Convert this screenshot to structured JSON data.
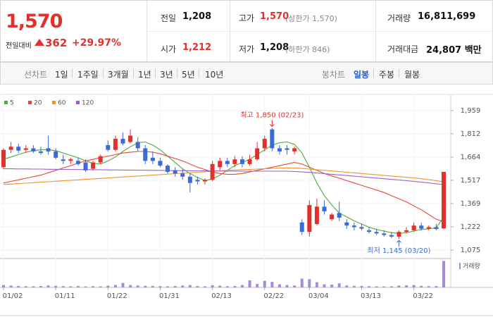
{
  "quote": {
    "price": "1,570",
    "change_label": "전일대비",
    "change": "362",
    "change_pct": "+29.97%",
    "rows": [
      [
        {
          "label": "전일",
          "value": "1,208"
        },
        {
          "label": "고가",
          "value": "1,570",
          "note": "(상한가 1,570)"
        },
        {
          "label": "거래량",
          "value": "16,811,699"
        }
      ],
      [
        {
          "label": "시가",
          "value": "1,212"
        },
        {
          "label": "저가",
          "value": "1,208",
          "note": "(하한가 846)"
        },
        {
          "label": "거래대금",
          "value": "24,807 백만"
        }
      ]
    ]
  },
  "tabs": {
    "line_title": "선차트",
    "line_periods": [
      "1일",
      "1주일",
      "3개월",
      "1년",
      "3년",
      "5년",
      "10년"
    ],
    "candle_title": "봉차트",
    "candle_periods": [
      "일봉",
      "주봉",
      "월봉"
    ],
    "active_candle_period": 0
  },
  "chart_data": {
    "type": "candlestick",
    "categories": [
      "01/02",
      null,
      null,
      null,
      null,
      null,
      null,
      "01/11",
      null,
      null,
      null,
      null,
      null,
      null,
      "01/22",
      null,
      null,
      null,
      null,
      null,
      null,
      "01/31",
      null,
      null,
      null,
      null,
      null,
      null,
      "02/13",
      null,
      null,
      null,
      null,
      null,
      null,
      "02/22",
      null,
      null,
      null,
      null,
      null,
      "03/04",
      null,
      null,
      null,
      null,
      null,
      null,
      "03/13",
      null,
      null,
      null,
      null,
      null,
      null,
      "03/22",
      null,
      null,
      null,
      null
    ],
    "open": [
      1600,
      1710,
      1730,
      1710,
      1720,
      1700,
      1720,
      1700,
      1650,
      1640,
      1640,
      1630,
      1590,
      1630,
      1740,
      1710,
      1780,
      1760,
      1760,
      1720,
      1660,
      1640,
      1610,
      1580,
      1560,
      1540,
      1520,
      1510,
      1520,
      1600,
      1640,
      1620,
      1650,
      1620,
      1650,
      1720,
      1840,
      1720,
      1720,
      1700,
      1250,
      1190,
      1240,
      1350,
      1270,
      1310,
      1250,
      1230,
      1220,
      1200,
      1190,
      1180,
      1170,
      1160,
      1190,
      1200,
      1230,
      1210,
      1220,
      1212
    ],
    "high": [
      1720,
      1760,
      1750,
      1740,
      1740,
      1730,
      1800,
      1720,
      1680,
      1660,
      1660,
      1650,
      1640,
      1680,
      1770,
      1800,
      1820,
      1840,
      1790,
      1740,
      1700,
      1660,
      1620,
      1600,
      1590,
      1560,
      1540,
      1530,
      1640,
      1660,
      1660,
      1670,
      1670,
      1680,
      1760,
      1800,
      1850,
      1740,
      1740,
      1730,
      1270,
      1390,
      1400,
      1390,
      1310,
      1380,
      1270,
      1250,
      1240,
      1220,
      1210,
      1200,
      1190,
      1200,
      1220,
      1250,
      1250,
      1230,
      1240,
      1570
    ],
    "low": [
      1590,
      1690,
      1690,
      1690,
      1690,
      1680,
      1680,
      1650,
      1620,
      1620,
      1610,
      1570,
      1580,
      1620,
      1700,
      1700,
      1740,
      1750,
      1700,
      1620,
      1620,
      1600,
      1560,
      1540,
      1520,
      1440,
      1490,
      1490,
      1510,
      1580,
      1600,
      1600,
      1600,
      1610,
      1640,
      1700,
      1700,
      1680,
      1680,
      1680,
      1170,
      1160,
      1230,
      1300,
      1260,
      1260,
      1210,
      1200,
      1200,
      1180,
      1170,
      1160,
      1150,
      1145,
      1180,
      1190,
      1200,
      1200,
      1200,
      1208
    ],
    "close": [
      1710,
      1730,
      1705,
      1720,
      1700,
      1690,
      1700,
      1660,
      1640,
      1650,
      1620,
      1580,
      1630,
      1670,
      1710,
      1780,
      1750,
      1800,
      1720,
      1640,
      1640,
      1610,
      1570,
      1560,
      1540,
      1500,
      1510,
      1520,
      1620,
      1640,
      1620,
      1650,
      1620,
      1650,
      1720,
      1780,
      1720,
      1700,
      1710,
      1720,
      1190,
      1360,
      1350,
      1320,
      1300,
      1280,
      1230,
      1220,
      1210,
      1190,
      1180,
      1170,
      1160,
      1190,
      1200,
      1230,
      1210,
      1220,
      1208,
      1570
    ],
    "up_color": "#e2302c",
    "down_color": "#3b6bd6",
    "series": [
      {
        "name": "5",
        "color": "#4faa3a",
        "values": [
          1650,
          1665,
          1680,
          1695,
          1705,
          1710,
          1712,
          1705,
          1690,
          1675,
          1660,
          1640,
          1625,
          1620,
          1640,
          1665,
          1700,
          1730,
          1755,
          1760,
          1740,
          1710,
          1670,
          1630,
          1590,
          1560,
          1535,
          1515,
          1525,
          1550,
          1580,
          1610,
          1630,
          1650,
          1680,
          1710,
          1740,
          1755,
          1760,
          1745,
          1690,
          1600,
          1500,
          1420,
          1360,
          1310,
          1285,
          1260,
          1240,
          1220,
          1205,
          1195,
          1185,
          1180,
          1185,
          1195,
          1205,
          1210,
          1215,
          1285
        ]
      },
      {
        "name": "20",
        "color": "#e8463a",
        "values": [
          1500,
          1510,
          1520,
          1530,
          1540,
          1550,
          1565,
          1580,
          1595,
          1610,
          1625,
          1640,
          1650,
          1660,
          1670,
          1680,
          1690,
          1695,
          1700,
          1700,
          1695,
          1685,
          1670,
          1655,
          1640,
          1620,
          1600,
          1585,
          1570,
          1560,
          1555,
          1555,
          1560,
          1570,
          1580,
          1590,
          1600,
          1610,
          1620,
          1630,
          1620,
          1600,
          1580,
          1560,
          1545,
          1530,
          1515,
          1500,
          1485,
          1470,
          1455,
          1440,
          1420,
          1400,
          1380,
          1355,
          1330,
          1300,
          1270,
          1255
        ]
      },
      {
        "name": "60",
        "color": "#f0922c",
        "values": [
          1490,
          1493,
          1496,
          1499,
          1502,
          1505,
          1508,
          1511,
          1514,
          1517,
          1520,
          1523,
          1526,
          1529,
          1532,
          1535,
          1538,
          1541,
          1544,
          1547,
          1550,
          1553,
          1556,
          1559,
          1562,
          1565,
          1568,
          1571,
          1574,
          1577,
          1580,
          1582,
          1584,
          1586,
          1588,
          1590,
          1592,
          1594,
          1596,
          1595,
          1592,
          1588,
          1584,
          1580,
          1576,
          1572,
          1568,
          1564,
          1560,
          1556,
          1552,
          1548,
          1544,
          1540,
          1536,
          1532,
          1527,
          1521,
          1515,
          1508
        ]
      },
      {
        "name": "120",
        "color": "#9a60d0",
        "values": [
          1590,
          1590,
          1589,
          1589,
          1588,
          1588,
          1587,
          1587,
          1586,
          1586,
          1585,
          1585,
          1584,
          1584,
          1583,
          1583,
          1582,
          1582,
          1581,
          1581,
          1580,
          1580,
          1579,
          1579,
          1578,
          1578,
          1577,
          1577,
          1576,
          1576,
          1575,
          1575,
          1575,
          1575,
          1575,
          1575,
          1575,
          1575,
          1575,
          1573,
          1570,
          1567,
          1563,
          1559,
          1555,
          1551,
          1547,
          1543,
          1539,
          1535,
          1531,
          1527,
          1523,
          1519,
          1515,
          1510,
          1505,
          1500,
          1495,
          1490
        ]
      }
    ],
    "ylim": [
      1030,
      1999
    ],
    "yticks": [
      {
        "value": 1075,
        "label": "1,075"
      },
      {
        "value": 1222,
        "label": "1,222"
      },
      {
        "value": 1369,
        "label": "1,369"
      },
      {
        "value": 1517,
        "label": "1,517"
      },
      {
        "value": 1664,
        "label": "1,664"
      },
      {
        "value": 1812,
        "label": "1,812"
      },
      {
        "value": 1959,
        "label": "1,959"
      }
    ],
    "grid": true,
    "max_label": "최고 1,850 (02/23)",
    "min_label": "최저 1,145 (03/20)",
    "volume": {
      "name": "거래량",
      "color": "#a98ad8",
      "ylim": [
        0,
        17000000
      ],
      "values": [
        1500000,
        1200000,
        900000,
        800000,
        700000,
        900000,
        1300000,
        1000000,
        800000,
        700000,
        900000,
        600000,
        800000,
        700000,
        1100000,
        1600000,
        2800000,
        1500000,
        1200000,
        1000000,
        900000,
        800000,
        700000,
        900000,
        1200000,
        1500000,
        900000,
        700000,
        1400000,
        1100000,
        800000,
        900000,
        1500000,
        4500000,
        2200000,
        4200000,
        3500000,
        2000000,
        1500000,
        1200000,
        5600000,
        5200000,
        3300000,
        2000000,
        1800000,
        2600000,
        1200000,
        1000000,
        900000,
        800000,
        700000,
        600000,
        700000,
        1200000,
        1300000,
        1500000,
        1000000,
        800000,
        900000,
        16811699
      ]
    }
  }
}
